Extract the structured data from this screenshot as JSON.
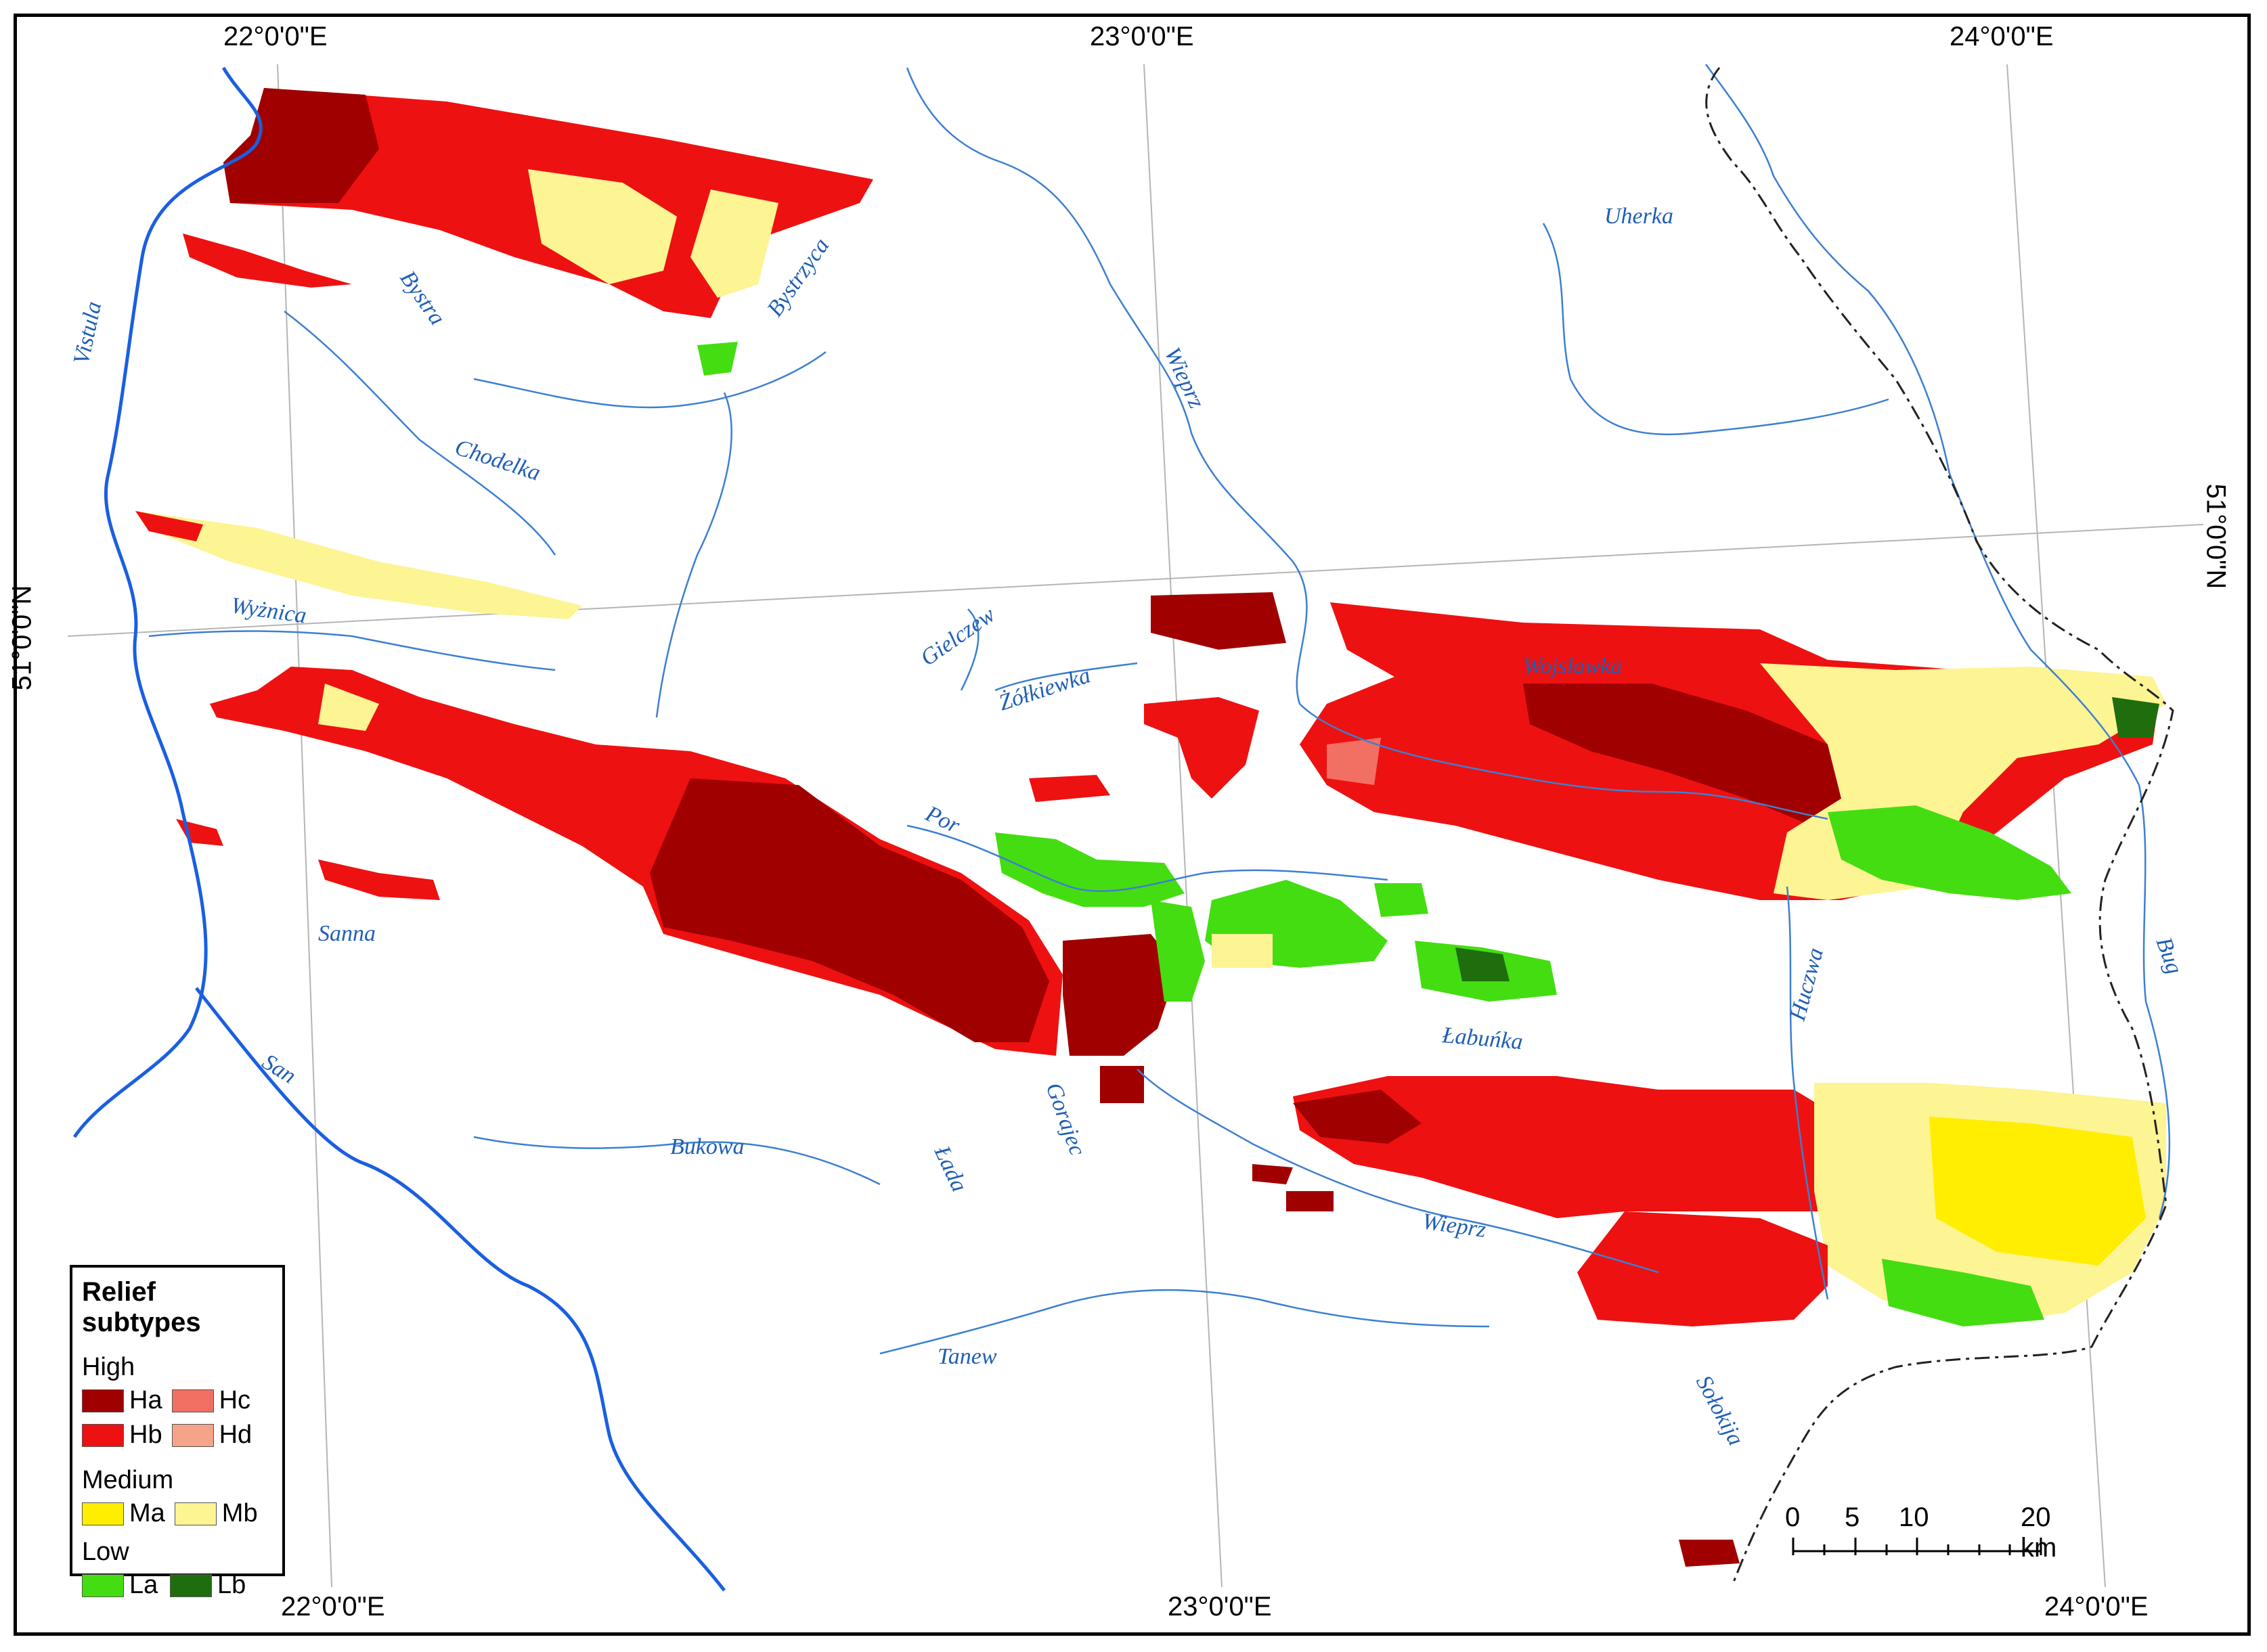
{
  "coordinates": {
    "top": [
      "22°0'0\"E",
      "23°0'0\"E",
      "24°0'0\"E"
    ],
    "bottom": [
      "22°0'0\"E",
      "23°0'0\"E",
      "24°0'0\"E"
    ],
    "left": "51°0'0\"N",
    "right": "51°0'0\"N"
  },
  "rivers": [
    "Vistula",
    "Bystra",
    "Bystrzyca",
    "Chodelka",
    "Wyżnica",
    "Sanna",
    "San",
    "Bukowa",
    "Łada",
    "Gorajec",
    "Por",
    "Żółkiewka",
    "Gielczew",
    "Wieprz",
    "Uherka",
    "Wojsławka",
    "Łabuńka",
    "Huczwa",
    "Bug",
    "Wieprz",
    "Tanew",
    "Sołokija"
  ],
  "legend": {
    "title": "Relief subtypes",
    "groups": [
      {
        "name": "High",
        "items": [
          {
            "code": "Ha",
            "color": "#a00000"
          },
          {
            "code": "Hc",
            "color": "#f26f63"
          },
          {
            "code": "Hb",
            "color": "#ee1111"
          },
          {
            "code": "Hd",
            "color": "#f6a489"
          }
        ]
      },
      {
        "name": "Medium",
        "items": [
          {
            "code": "Ma",
            "color": "#ffee00"
          },
          {
            "code": "Mb",
            "color": "#fdf493"
          }
        ]
      },
      {
        "name": "Low",
        "items": [
          {
            "code": "La",
            "color": "#44dd11"
          },
          {
            "code": "Lb",
            "color": "#1e6e0e"
          }
        ]
      }
    ]
  },
  "scale": {
    "labels": [
      "0",
      "5",
      "10",
      "20 km"
    ]
  }
}
